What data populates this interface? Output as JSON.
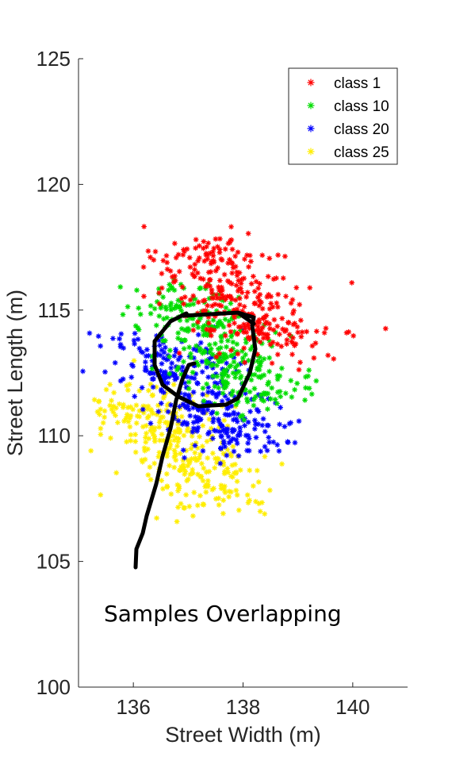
{
  "chart_data": {
    "type": "scatter",
    "title": "",
    "xlabel": "Street Width (m)",
    "ylabel": "Street Length (m)",
    "xlim": [
      135,
      141
    ],
    "ylim": [
      100,
      125
    ],
    "xticks": [
      "136",
      "138",
      "140"
    ],
    "yticks": [
      "100",
      "105",
      "110",
      "115",
      "120",
      "125"
    ],
    "xtick_values": [
      136,
      138,
      140
    ],
    "ytick_values": [
      100,
      105,
      110,
      115,
      120,
      125
    ],
    "grid": false,
    "legend_position": "top-right",
    "marker": "asterisk",
    "series": [
      {
        "name": "class 1",
        "color": "#ff0000",
        "center": [
          137.9,
          115.5
        ],
        "count": 330
      },
      {
        "name": "class 10",
        "color": "#00dd00",
        "center": [
          137.6,
          113.5
        ],
        "count": 330
      },
      {
        "name": "class 20",
        "color": "#0000ff",
        "center": [
          137.2,
          111.6
        ],
        "count": 330
      },
      {
        "name": "class 25",
        "color": "#ffee00",
        "center": [
          136.8,
          109.6
        ],
        "count": 330
      }
    ],
    "annotation": "Samples Overlapping"
  }
}
